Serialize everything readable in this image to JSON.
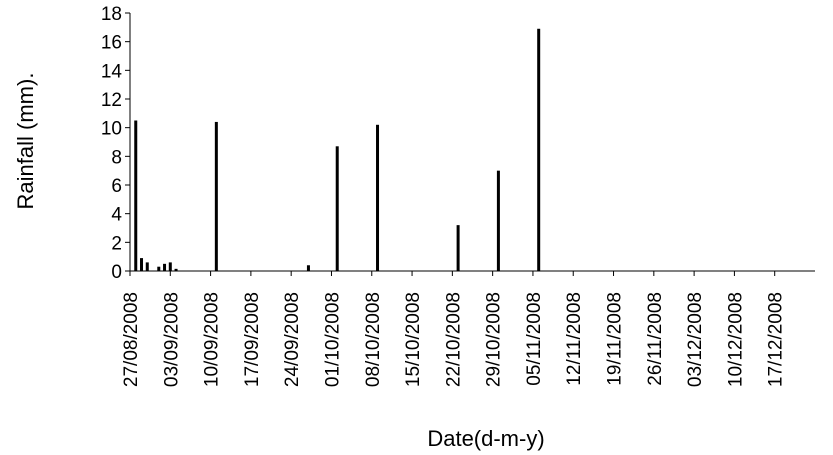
{
  "chart_data": {
    "type": "bar",
    "title": "",
    "xlabel": "Date(d-m-y)",
    "ylabel": "Rainfall (mm).",
    "ylim": [
      0,
      18
    ],
    "yticks": [
      0,
      2,
      4,
      6,
      8,
      10,
      12,
      14,
      16,
      18
    ],
    "xlim": [
      "27/08/2008",
      "24/12/2008"
    ],
    "xtick_labels": [
      "27/08/2008",
      "03/09/2008",
      "10/09/2008",
      "17/09/2008",
      "24/09/2008",
      "01/10/2008",
      "08/10/2008",
      "15/10/2008",
      "22/10/2008",
      "29/10/2008",
      "05/11/2008",
      "12/11/2008",
      "19/11/2008",
      "26/11/2008",
      "03/12/2008",
      "10/12/2008",
      "17/12/2008"
    ],
    "grid": false,
    "legend": false,
    "bar_color": "#000000",
    "points": [
      {
        "date": "28/08/2008",
        "value": 10.5
      },
      {
        "date": "29/08/2008",
        "value": 0.9
      },
      {
        "date": "30/08/2008",
        "value": 0.6
      },
      {
        "date": "01/09/2008",
        "value": 0.3
      },
      {
        "date": "02/09/2008",
        "value": 0.5
      },
      {
        "date": "03/09/2008",
        "value": 0.6
      },
      {
        "date": "04/09/2008",
        "value": 0.15
      },
      {
        "date": "11/09/2008",
        "value": 10.4
      },
      {
        "date": "27/09/2008",
        "value": 0.4
      },
      {
        "date": "02/10/2008",
        "value": 8.7
      },
      {
        "date": "09/10/2008",
        "value": 10.2
      },
      {
        "date": "23/10/2008",
        "value": 3.2
      },
      {
        "date": "30/10/2008",
        "value": 7.0
      },
      {
        "date": "06/11/2008",
        "value": 16.9
      }
    ]
  }
}
